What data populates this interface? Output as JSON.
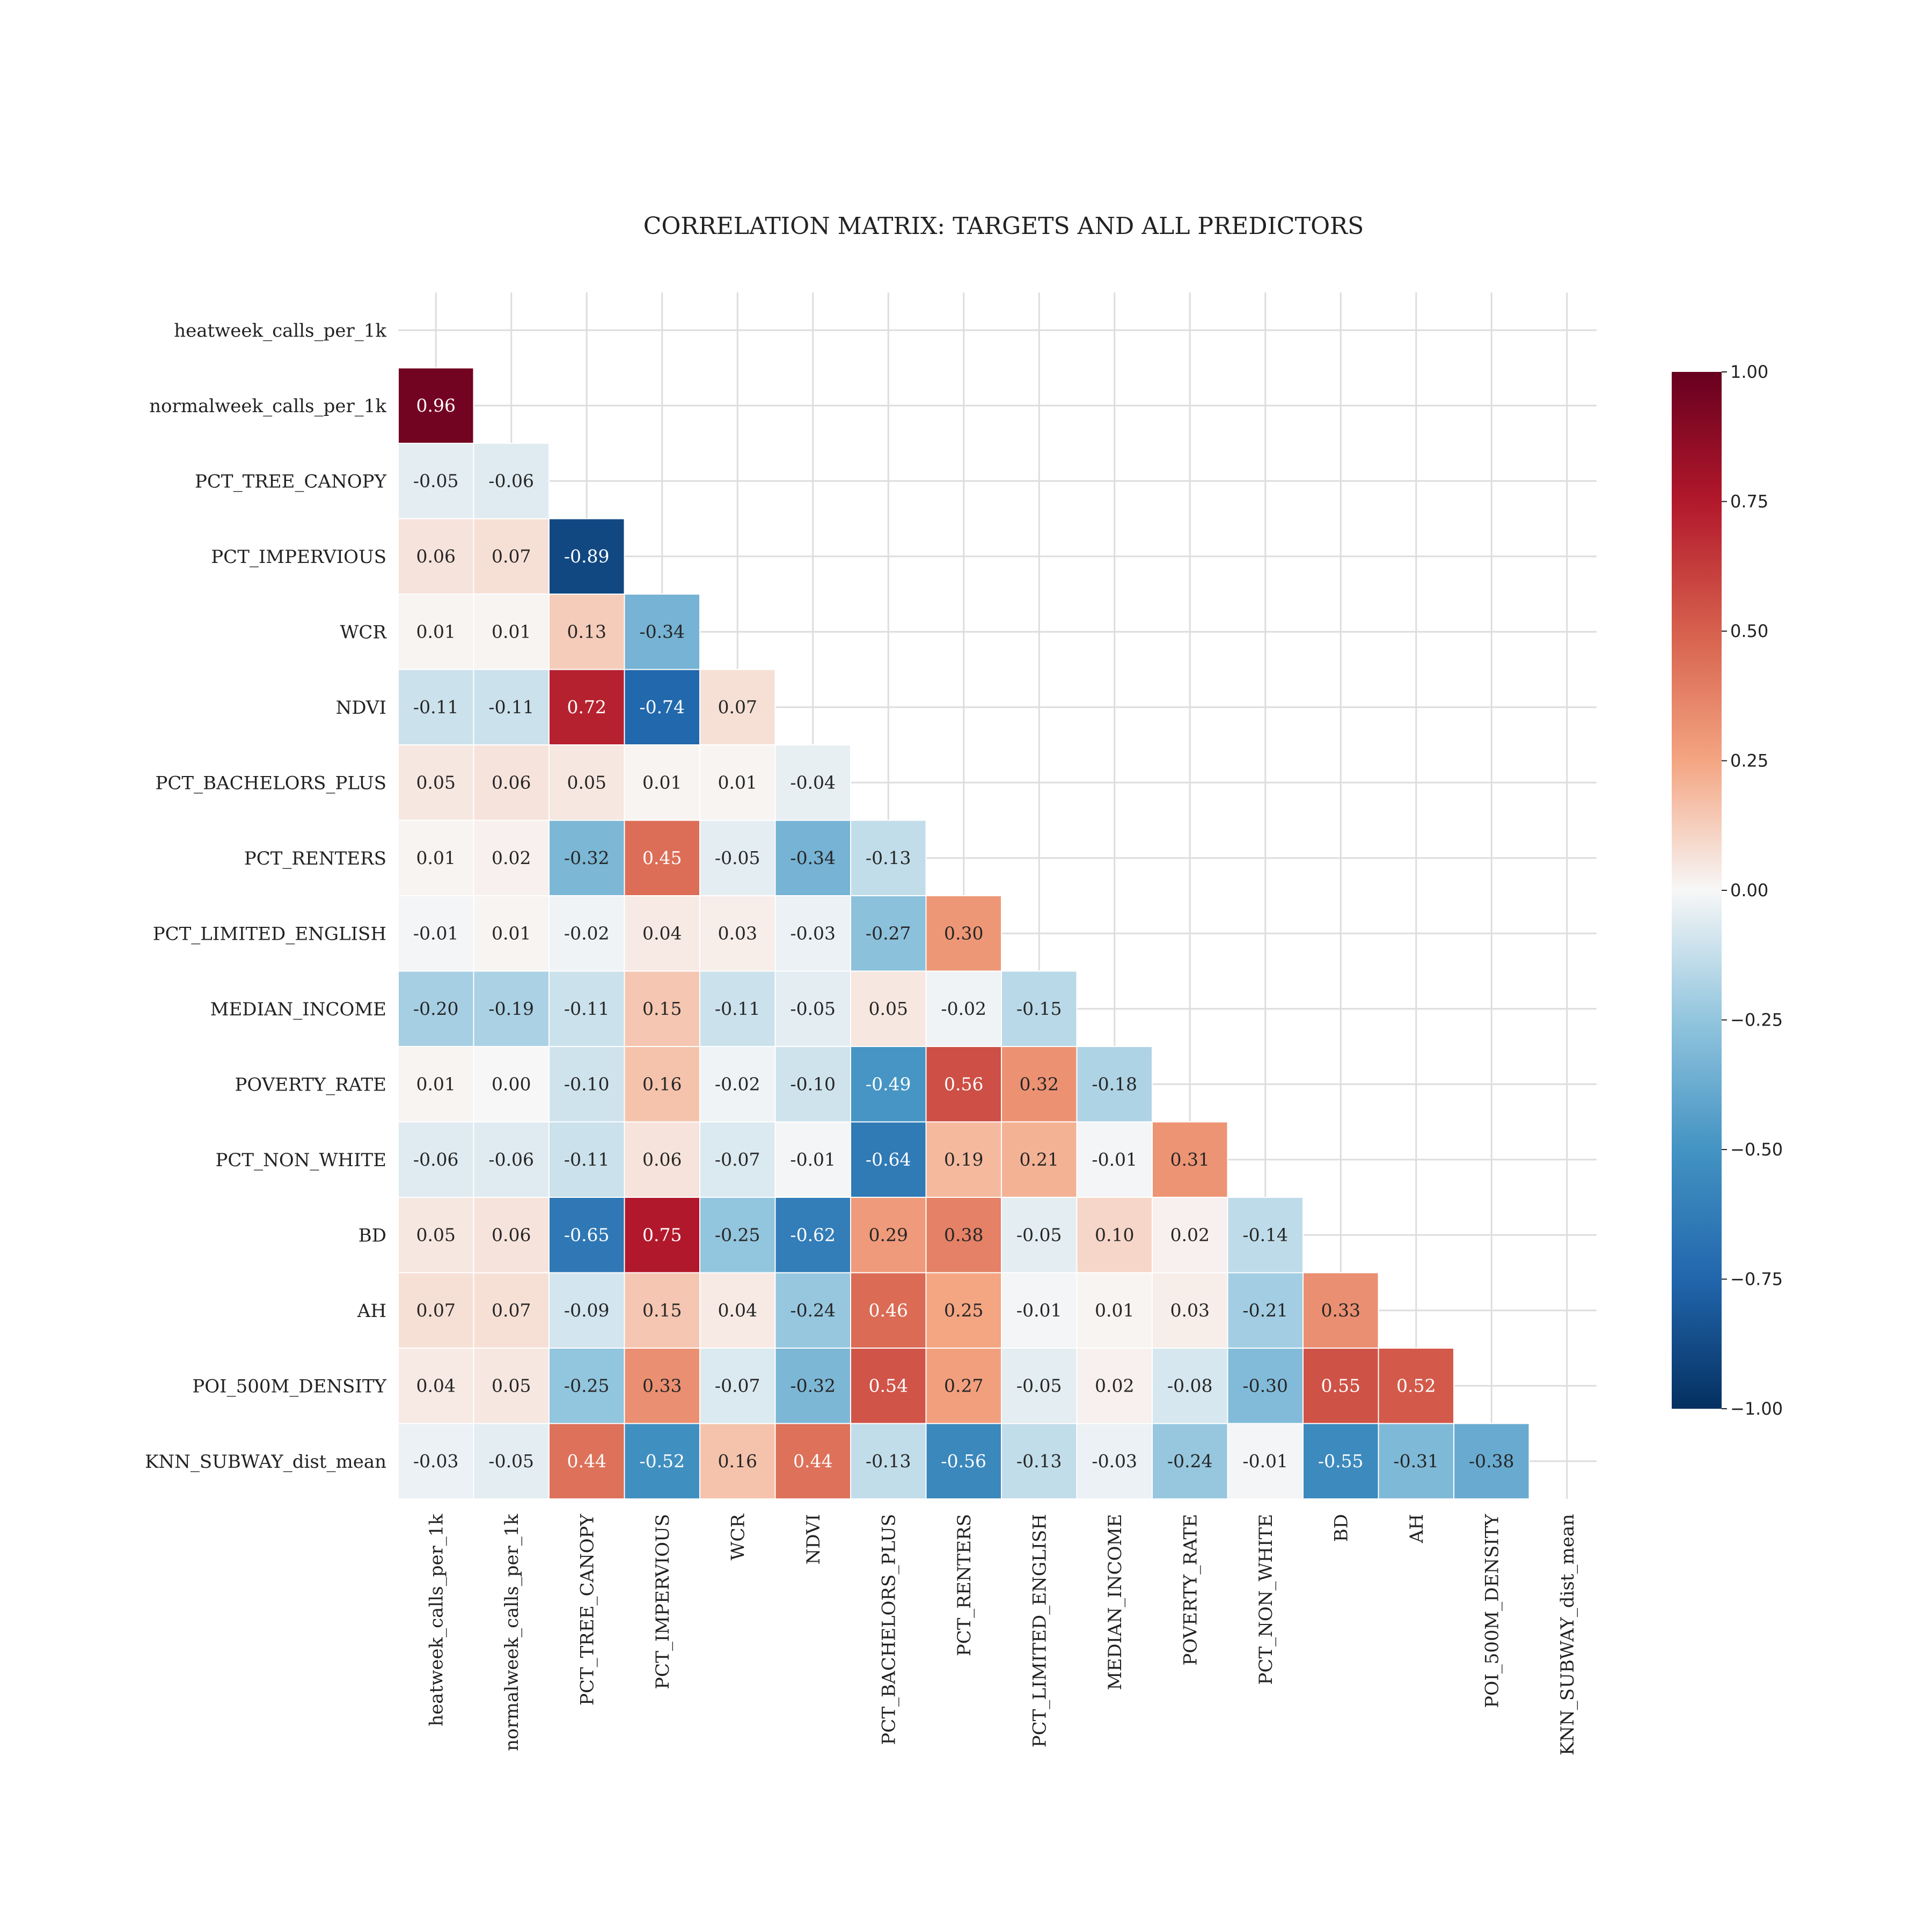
{
  "chart_data": {
    "type": "heatmap",
    "title": "CORRELATION MATRIX: TARGETS AND ALL PREDICTORS",
    "mask": "lower-triangle (diagonal and upper triangle hidden)",
    "grid": true,
    "legend": "colorbar right",
    "colormap": "RdBu_r",
    "vmin": -1.0,
    "vmax": 1.0,
    "colorbar_ticks": [
      "1.00",
      "0.75",
      "0.50",
      "0.25",
      "0.00",
      "−0.25",
      "−0.50",
      "−0.75",
      "−1.00"
    ],
    "colorbar_tick_values": [
      1.0,
      0.75,
      0.5,
      0.25,
      0.0,
      -0.25,
      -0.5,
      -0.75,
      -1.0
    ],
    "labels": [
      "heatweek_calls_per_1k",
      "normalweek_calls_per_1k",
      "PCT_TREE_CANOPY",
      "PCT_IMPERVIOUS",
      "WCR",
      "NDVI",
      "PCT_BACHELORS_PLUS",
      "PCT_RENTERS",
      "PCT_LIMITED_ENGLISH",
      "MEDIAN_INCOME",
      "POVERTY_RATE",
      "PCT_NON_WHITE",
      "BD",
      "AH",
      "POI_500M_DENSITY",
      "KNN_SUBWAY_dist_mean"
    ],
    "lower_triangle": [
      [],
      [
        0.96
      ],
      [
        -0.05,
        -0.06
      ],
      [
        0.06,
        0.07,
        -0.89
      ],
      [
        0.01,
        0.01,
        0.13,
        -0.34
      ],
      [
        -0.11,
        -0.11,
        0.72,
        -0.74,
        0.07
      ],
      [
        0.05,
        0.06,
        0.05,
        0.01,
        0.01,
        -0.04
      ],
      [
        0.01,
        0.02,
        -0.32,
        0.45,
        -0.05,
        -0.34,
        -0.13
      ],
      [
        -0.01,
        0.01,
        -0.02,
        0.04,
        0.03,
        -0.03,
        -0.27,
        0.3
      ],
      [
        -0.2,
        -0.19,
        -0.11,
        0.15,
        -0.11,
        -0.05,
        0.05,
        -0.02,
        -0.15
      ],
      [
        0.01,
        -0.0,
        -0.1,
        0.16,
        -0.02,
        -0.1,
        -0.49,
        0.56,
        0.32,
        -0.18
      ],
      [
        -0.06,
        -0.06,
        -0.11,
        0.06,
        -0.07,
        -0.01,
        -0.64,
        0.19,
        0.21,
        -0.01,
        0.31
      ],
      [
        0.05,
        0.06,
        -0.65,
        0.75,
        -0.25,
        -0.62,
        0.29,
        0.38,
        -0.05,
        0.1,
        0.02,
        -0.14
      ],
      [
        0.07,
        0.07,
        -0.09,
        0.15,
        0.04,
        -0.24,
        0.46,
        0.25,
        -0.01,
        0.01,
        0.03,
        -0.21,
        0.33
      ],
      [
        0.04,
        0.05,
        -0.25,
        0.33,
        -0.07,
        -0.32,
        0.54,
        0.27,
        -0.05,
        0.02,
        -0.08,
        -0.3,
        0.55,
        0.52
      ],
      [
        -0.03,
        -0.05,
        0.44,
        -0.52,
        0.16,
        0.44,
        -0.13,
        -0.56,
        -0.13,
        -0.03,
        -0.24,
        -0.01,
        -0.55,
        -0.31,
        -0.38
      ]
    ]
  }
}
